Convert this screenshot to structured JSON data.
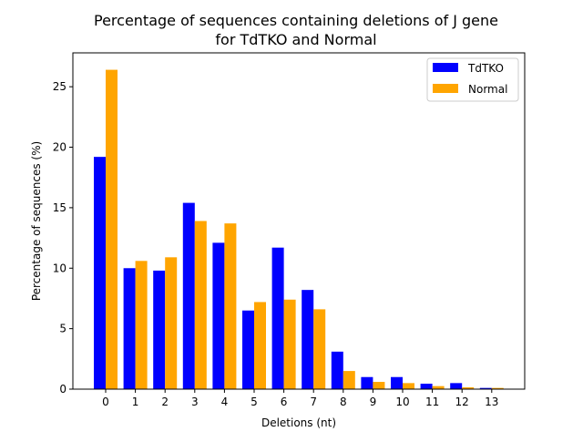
{
  "chart_data": {
    "type": "bar",
    "title_lines": [
      "Percentage of sequences containing deletions of J gene",
      "for TdTKO and Normal"
    ],
    "xlabel": "Deletions (nt)",
    "ylabel": "Percentage of sequences (%)",
    "categories": [
      "0",
      "1",
      "2",
      "3",
      "4",
      "5",
      "6",
      "7",
      "8",
      "9",
      "10",
      "11",
      "12",
      "13"
    ],
    "ylim": [
      0,
      27.8
    ],
    "yticks": [
      "0",
      "5",
      "10",
      "15",
      "20",
      "25"
    ],
    "ytick_values": [
      0,
      5,
      10,
      15,
      20,
      25
    ],
    "series": [
      {
        "name": "TdTKO",
        "color": "#0000ff",
        "values": [
          19.2,
          10.0,
          9.8,
          15.4,
          12.1,
          6.5,
          11.7,
          8.2,
          3.1,
          1.0,
          1.0,
          0.45,
          0.5,
          0.1
        ]
      },
      {
        "name": "Normal",
        "color": "#ffa500",
        "values": [
          26.4,
          10.6,
          10.9,
          13.9,
          13.7,
          7.2,
          7.4,
          6.6,
          1.5,
          0.6,
          0.5,
          0.25,
          0.15,
          0.1
        ]
      }
    ],
    "legend_position": "upper right",
    "grid": false
  }
}
